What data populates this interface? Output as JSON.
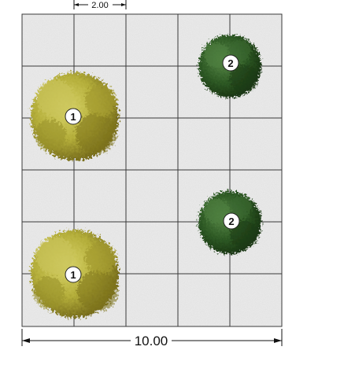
{
  "plan": {
    "grid": {
      "columns": 5,
      "rows": 6,
      "cell_size": "2.00",
      "overall_width": "10.00"
    },
    "dimensions": {
      "module": "2.00",
      "overall": "10.00"
    },
    "plants": [
      {
        "tag": "1",
        "species_color": "#b4ae3a",
        "label": "1"
      },
      {
        "tag": "1",
        "species_color": "#b4ae3a",
        "label": "1"
      },
      {
        "tag": "2",
        "species_color": "#2e5a25",
        "label": "2"
      },
      {
        "tag": "2",
        "species_color": "#2e5a25",
        "label": "2"
      }
    ],
    "colors": {
      "ground": "#ececec",
      "grid_line": "#3a3a3a",
      "tree1_light": "#c9c35a",
      "tree1_dark": "#8a7e22",
      "tree2_light": "#3f6f33",
      "tree2_dark": "#1f3d18"
    }
  }
}
